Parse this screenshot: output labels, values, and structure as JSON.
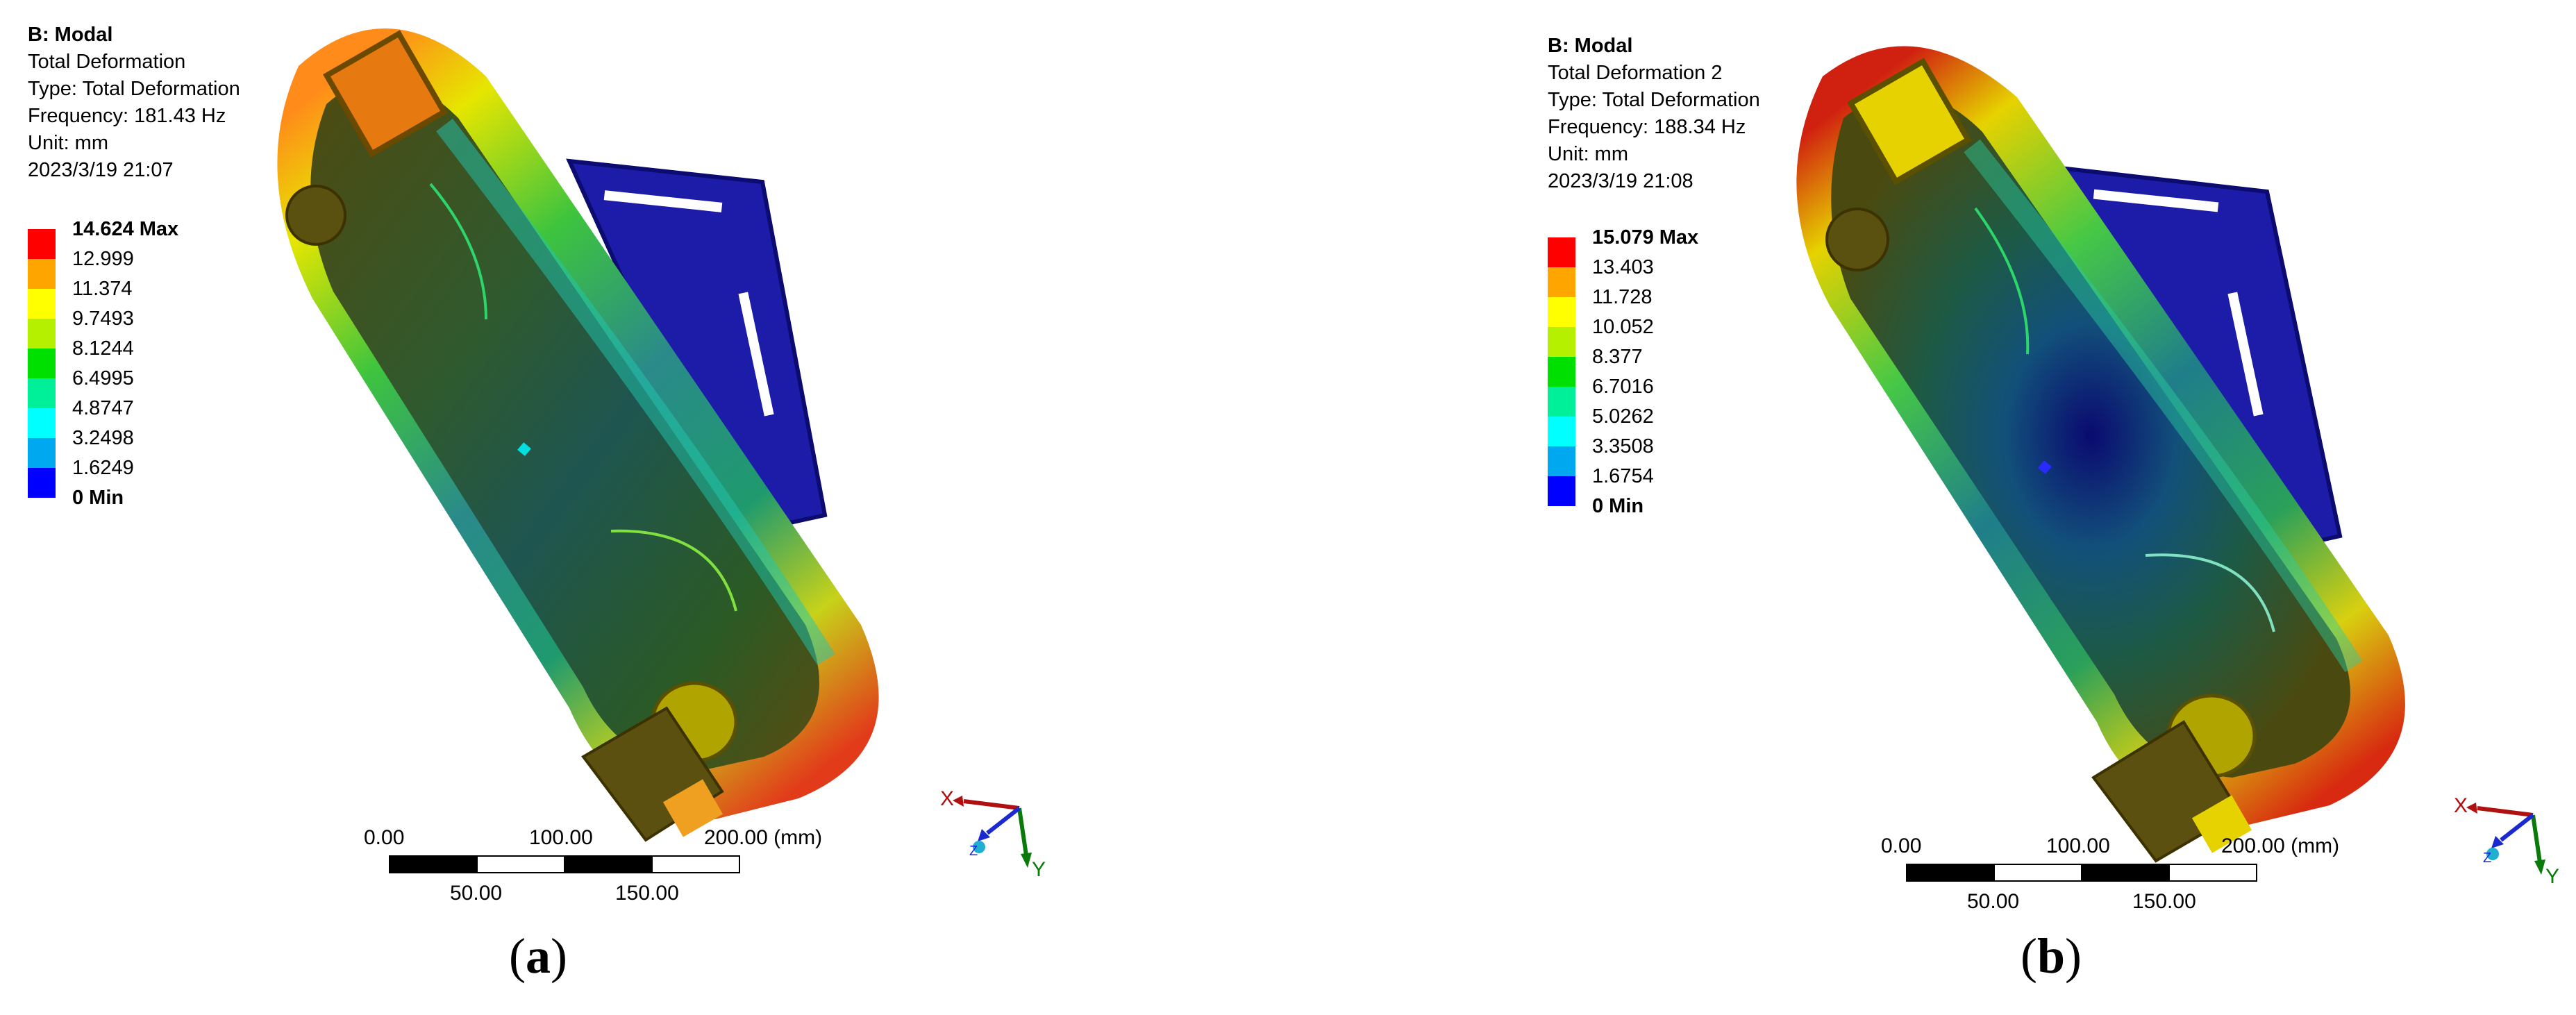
{
  "panels": [
    {
      "header": {
        "title": "B: Modal",
        "result_name": "Total Deformation",
        "type": "Type: Total Deformation",
        "frequency": "Frequency: 181.43 Hz",
        "unit": "Unit: mm",
        "timestamp": "2023/3/19 21:07"
      },
      "legend": [
        "14.624 Max",
        "12.999",
        "11.374",
        "9.7493",
        "8.1244",
        "6.4995",
        "4.8747",
        "3.2498",
        "1.6249",
        "0 Min"
      ],
      "scale": {
        "top_labels": [
          "0.00",
          "100.00",
          "200.00 (mm)"
        ],
        "bottom_labels": [
          "50.00",
          "150.00"
        ]
      },
      "triad": {
        "x": "X",
        "y": "Y",
        "z": "Z"
      },
      "caption": {
        "open": "(",
        "letter": "a",
        "close": ")"
      }
    },
    {
      "header": {
        "title": "B: Modal",
        "result_name": "Total Deformation 2",
        "type": "Type: Total Deformation",
        "frequency": "Frequency: 188.34 Hz",
        "unit": "Unit: mm",
        "timestamp": "2023/3/19 21:08"
      },
      "legend": [
        "15.079 Max",
        "13.403",
        "11.728",
        "10.052",
        "8.377",
        "6.7016",
        "5.0262",
        "3.3508",
        "1.6754",
        "0 Min"
      ],
      "scale": {
        "top_labels": [
          "0.00",
          "100.00",
          "200.00 (mm)"
        ],
        "bottom_labels": [
          "50.00",
          "150.00"
        ]
      },
      "triad": {
        "x": "X",
        "y": "Y",
        "z": "Z"
      },
      "caption": {
        "open": "(",
        "letter": "b",
        "close": ")"
      }
    }
  ],
  "legend_colors": [
    "#ff0000",
    "#ffa500",
    "#ffff00",
    "#b5f000",
    "#00e000",
    "#00f09a",
    "#00ffff",
    "#00a8f0",
    "#0000ff"
  ]
}
